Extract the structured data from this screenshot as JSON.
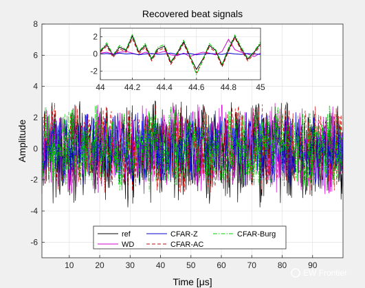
{
  "watermark": {
    "text": "EW Frontier"
  },
  "chart_data": [
    {
      "type": "line",
      "title": "Recovered beat signals",
      "xlabel": "Time [μs]",
      "ylabel": "Amplitude",
      "xlim": [
        1,
        100
      ],
      "ylim": [
        -7,
        8
      ],
      "xticks": [
        10,
        20,
        30,
        40,
        50,
        60,
        70,
        80,
        90
      ],
      "yticks": [
        -6,
        -4,
        -2,
        0,
        2,
        4,
        6,
        8
      ],
      "grid": true,
      "legend_position": "bottom-center",
      "series": [
        {
          "name": "ref",
          "color": "#000000",
          "style": "solid",
          "amplitude_range": [
            -3.8,
            3.1
          ]
        },
        {
          "name": "WD",
          "color": "#cc00cc",
          "style": "solid",
          "amplitude_range": [
            -3.0,
            3.0
          ]
        },
        {
          "name": "CFAR-Z",
          "color": "#0000cc",
          "style": "solid",
          "amplitude_range": [
            -2.5,
            2.5
          ]
        },
        {
          "name": "CFAR-AC",
          "color": "#cc0000",
          "style": "dashed",
          "amplitude_range": [
            -3.0,
            3.0
          ]
        },
        {
          "name": "CFAR-Burg",
          "color": "#00cc00",
          "style": "dashdot",
          "amplitude_range": [
            -2.8,
            2.8
          ]
        }
      ]
    },
    {
      "type": "line",
      "title": "",
      "xlabel": "",
      "ylabel": "",
      "xlim": [
        44,
        45
      ],
      "ylim": [
        -3,
        3
      ],
      "xticks": [
        44,
        44.2,
        44.4,
        44.6,
        44.8,
        45
      ],
      "xtick_labels": [
        "44",
        "44.2",
        "44.4",
        "44.6",
        "44.8",
        "45"
      ],
      "yticks": [
        -2,
        0,
        2
      ],
      "grid": true,
      "x": [
        44.0,
        44.04,
        44.08,
        44.12,
        44.16,
        44.2,
        44.24,
        44.28,
        44.32,
        44.36,
        44.4,
        44.44,
        44.48,
        44.52,
        44.56,
        44.6,
        44.64,
        44.68,
        44.72,
        44.76,
        44.8,
        44.84,
        44.88,
        44.92,
        44.96,
        45.0
      ],
      "series": [
        {
          "name": "ref",
          "color": "#000000",
          "style": "solid",
          "values": [
            0.3,
            1.1,
            -0.2,
            0.8,
            0.4,
            2.1,
            0.2,
            1.0,
            -0.6,
            0.6,
            0.9,
            -1.0,
            0.1,
            1.4,
            -0.3,
            -1.8,
            -0.6,
            1.0,
            0.4,
            -1.3,
            0.5,
            2.0,
            0.6,
            -0.6,
            0.2,
            1.2
          ]
        },
        {
          "name": "WD",
          "color": "#cc00cc",
          "style": "solid",
          "values": [
            0.1,
            0.2,
            0.0,
            0.2,
            0.3,
            0.1,
            -0.1,
            0.2,
            0.0,
            0.1,
            0.3,
            -0.1,
            -0.2,
            0.1,
            -0.3,
            0.0,
            0.2,
            0.1,
            -0.1,
            0.3,
            1.7,
            0.5,
            0.2,
            0.0,
            -0.3,
            0.1
          ]
        },
        {
          "name": "CFAR-Z",
          "color": "#0000cc",
          "style": "solid",
          "values": [
            0.0,
            0.05,
            -0.05,
            0.1,
            0.0,
            0.05,
            -0.1,
            0.0,
            0.05,
            -0.05,
            0.0,
            0.1,
            -0.05,
            0.0,
            0.05,
            -0.1,
            0.0,
            0.05,
            0.0,
            -0.05,
            0.1,
            0.0,
            -0.05,
            0.05,
            0.0,
            -0.05
          ]
        },
        {
          "name": "CFAR-AC",
          "color": "#cc0000",
          "style": "dashed",
          "values": [
            0.2,
            0.9,
            -0.4,
            0.6,
            0.2,
            1.8,
            0.0,
            0.8,
            -0.8,
            0.4,
            0.7,
            -1.2,
            -0.1,
            1.2,
            -0.5,
            -2.2,
            -0.8,
            0.8,
            0.2,
            -1.5,
            0.3,
            1.9,
            0.4,
            -0.8,
            0.0,
            1.0
          ]
        },
        {
          "name": "CFAR-Burg",
          "color": "#00cc00",
          "style": "dashdot",
          "values": [
            0.4,
            1.3,
            -0.1,
            1.0,
            0.5,
            2.3,
            0.3,
            1.2,
            -0.5,
            0.8,
            1.1,
            -0.9,
            0.2,
            1.6,
            -0.2,
            -2.4,
            -0.7,
            1.2,
            0.5,
            -1.2,
            0.7,
            2.2,
            0.8,
            -0.5,
            0.3,
            1.4
          ]
        }
      ]
    }
  ]
}
